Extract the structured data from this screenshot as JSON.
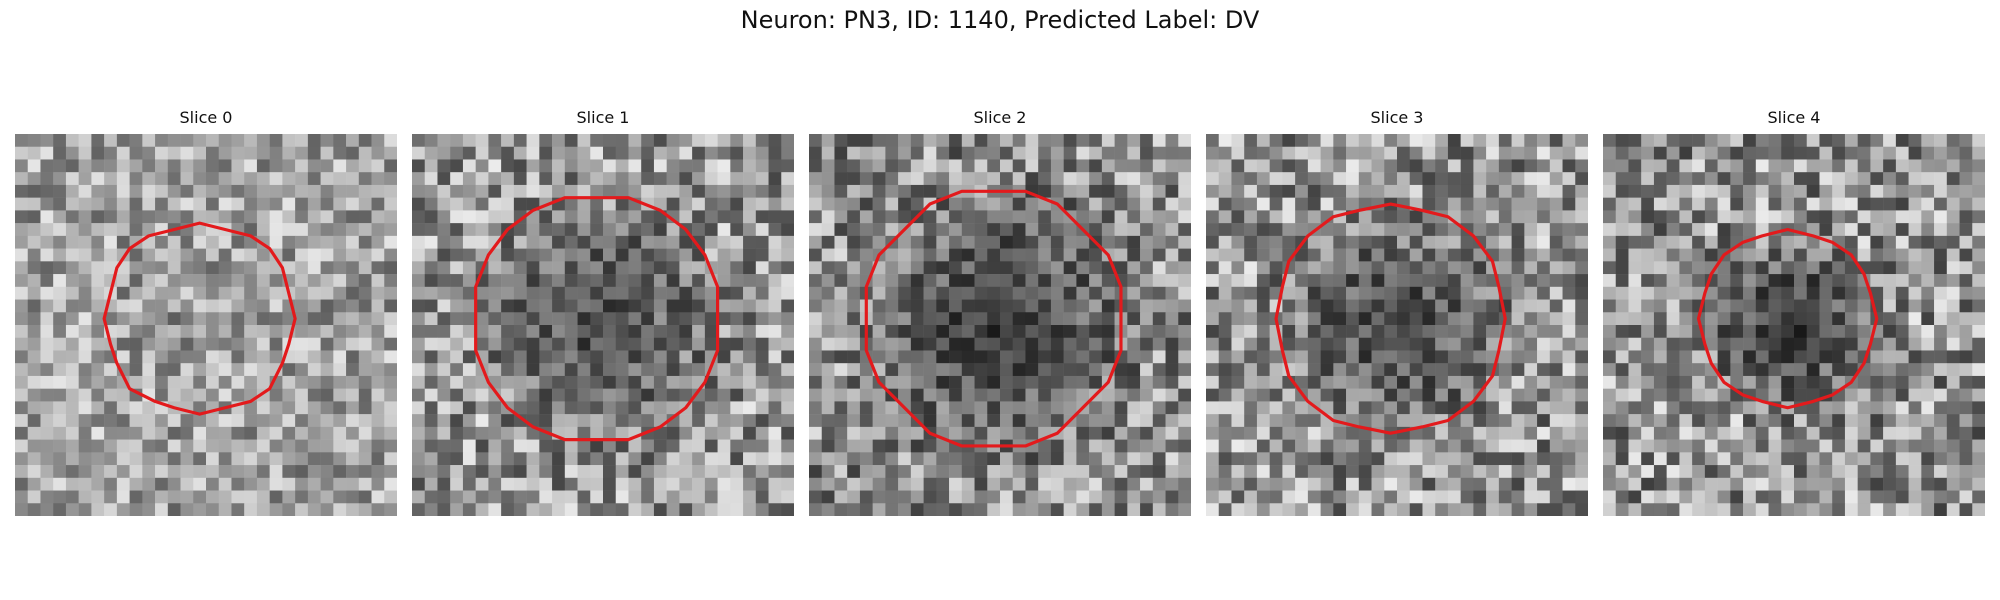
{
  "figure": {
    "title": "Neuron: PN3, ID: 1140, Predicted Label: DV",
    "contour_color": "#e31a1c",
    "colormap": "grayscale"
  },
  "slices": [
    {
      "label": "Slice 0",
      "seed": 11,
      "texture_low": 95,
      "texture_high": 230,
      "center_darkening": 0.05,
      "radius_frac": 0.25
    },
    {
      "label": "Slice 1",
      "seed": 23,
      "texture_low": 70,
      "texture_high": 235,
      "center_darkening": 0.55,
      "radius_frac": 0.32
    },
    {
      "label": "Slice 2",
      "seed": 37,
      "texture_low": 60,
      "texture_high": 225,
      "center_darkening": 0.65,
      "radius_frac": 0.34
    },
    {
      "label": "Slice 3",
      "seed": 41,
      "texture_low": 65,
      "texture_high": 235,
      "center_darkening": 0.6,
      "radius_frac": 0.3
    },
    {
      "label": "Slice 4",
      "seed": 53,
      "texture_low": 60,
      "texture_high": 235,
      "center_darkening": 0.7,
      "radius_frac": 0.23
    }
  ]
}
